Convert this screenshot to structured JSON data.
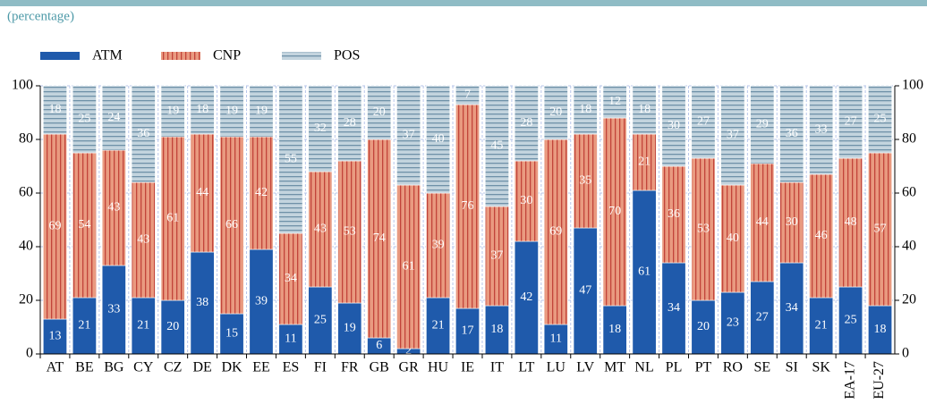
{
  "chart_data": {
    "type": "stacked_bar",
    "subtitle": "(percentage)",
    "categories": [
      "AT",
      "BE",
      "BG",
      "CY",
      "CZ",
      "DE",
      "DK",
      "EE",
      "ES",
      "FI",
      "FR",
      "GB",
      "GR",
      "HU",
      "IE",
      "IT",
      "LT",
      "LU",
      "LV",
      "MT",
      "NL",
      "PL",
      "PT",
      "RO",
      "SE",
      "SI",
      "SK",
      "EA-17",
      "EU-27"
    ],
    "series": [
      {
        "name": "ATM",
        "color": "#1f5aab",
        "pattern": "none",
        "values": [
          13,
          21,
          33,
          21,
          20,
          38,
          15,
          39,
          11,
          25,
          19,
          6,
          2,
          21,
          17,
          18,
          42,
          11,
          47,
          18,
          61,
          34,
          20,
          23,
          27,
          34,
          21,
          25,
          18
        ]
      },
      {
        "name": "CNP",
        "color": "#e99a80",
        "stripe": "#c2443a",
        "pattern": "vertical",
        "values": [
          69,
          54,
          43,
          43,
          61,
          44,
          66,
          42,
          34,
          43,
          53,
          74,
          61,
          39,
          76,
          37,
          30,
          69,
          35,
          70,
          21,
          36,
          53,
          40,
          44,
          30,
          46,
          48,
          57
        ]
      },
      {
        "name": "POS",
        "color": "#c3d4de",
        "stripe": "#6f91a8",
        "pattern": "horizontal",
        "values": [
          18,
          25,
          24,
          36,
          19,
          18,
          19,
          19,
          55,
          32,
          28,
          20,
          37,
          40,
          7,
          45,
          28,
          20,
          18,
          12,
          18,
          30,
          27,
          37,
          29,
          36,
          33,
          27,
          25
        ]
      }
    ],
    "ylim": [
      0,
      100
    ],
    "yticks": [
      0,
      20,
      40,
      60,
      80,
      100
    ],
    "grid": true,
    "right_axis": true
  }
}
